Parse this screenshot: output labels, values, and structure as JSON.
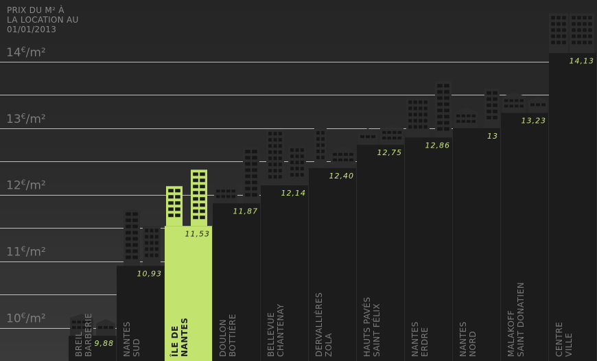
{
  "chart_data": {
    "type": "bar",
    "title": "PRIX DU M² À\nLA LOCATION AU\n01/01/2013",
    "xlabel": "",
    "ylabel": "",
    "ylim": [
      9.5,
      14.35
    ],
    "grid": true,
    "y_ticks": [
      {
        "value": 10,
        "label": "10€/m²"
      },
      {
        "value": 11,
        "label": "11€/m²"
      },
      {
        "value": 12,
        "label": "12€/m²"
      },
      {
        "value": 13,
        "label": "13€/m²"
      },
      {
        "value": 14,
        "label": "14€/m²"
      }
    ],
    "categories": [
      [
        "BREIL",
        "BARBERIE"
      ],
      [
        "NANTES",
        "SUD"
      ],
      [
        "ÎLE DE",
        "NANTES"
      ],
      [
        "DOULON",
        "BOTTIÈRE"
      ],
      [
        "BELLEVUE",
        "CHANTENAY"
      ],
      [
        "DERVALLIÈRES",
        "ZOLA"
      ],
      [
        "HAUTS PAVÉS",
        "SAINT FÉLIX"
      ],
      [
        "NANTES",
        "ERDRE"
      ],
      [
        "NANTES",
        "NORD"
      ],
      [
        "MALAKOFF",
        "SAINT DONATIEN"
      ],
      [
        "CENTRE",
        "VILLE"
      ]
    ],
    "values": [
      9.88,
      10.93,
      11.53,
      11.87,
      12.14,
      12.4,
      12.75,
      12.86,
      13,
      13.23,
      14.13
    ],
    "value_labels": [
      "9,88",
      "10,93",
      "11,53",
      "11,87",
      "12,14",
      "12,40",
      "12,75",
      "12,86",
      "13",
      "13,23",
      "14,13"
    ],
    "highlight_index": 2,
    "colors": {
      "bar": "#1c1c1c",
      "highlight": "#c2e46e",
      "value_label": "#c8e87a",
      "category_label": "#7a7a7a",
      "grid": "#d8d8d8",
      "tick_label": "#7c7c7c",
      "building": "#2c2c2c"
    }
  }
}
